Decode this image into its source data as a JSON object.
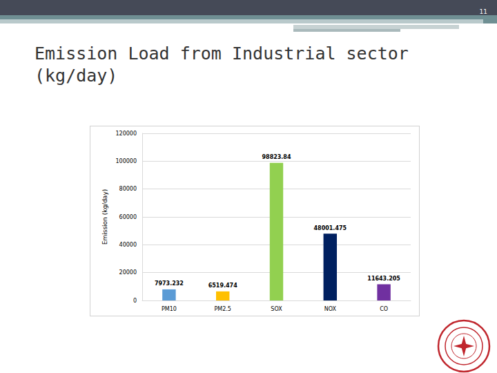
{
  "page_number": "11",
  "chart_data": {
    "type": "bar",
    "title": "Emission Load from Industrial sector (kg/day)",
    "y_label": "Emission (kg/day)",
    "categories": [
      "PM10",
      "PM2.5",
      "SOX",
      "NOX",
      "CO"
    ],
    "values": [
      7973.232,
      6519.474,
      98823.84,
      48001.475,
      11643.205
    ],
    "colors": [
      "#5b9bd5",
      "#ffc000",
      "#92d050",
      "#002060",
      "#7030a0"
    ],
    "ylim": [
      0,
      120000
    ],
    "yticks": [
      0,
      20000,
      40000,
      60000,
      80000,
      100000,
      120000
    ],
    "grid": true,
    "data_labels": true
  }
}
